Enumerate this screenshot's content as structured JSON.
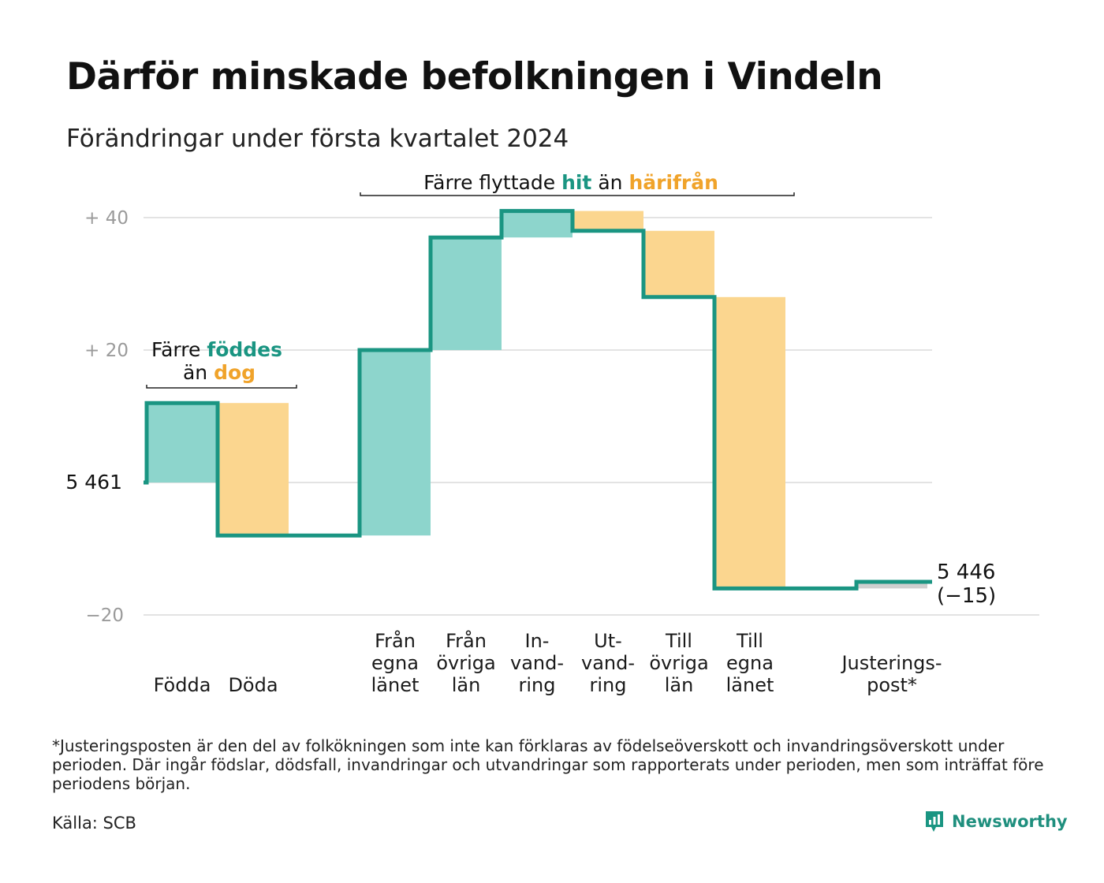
{
  "title": "Därför minskade befolkningen i Vindeln",
  "subtitle": "Förändringar under första kvartalet 2024",
  "colors": {
    "increase": "#8dd5cc",
    "decrease": "#fbd68f",
    "adjustment": "#cfcfcf",
    "line": "#1a9582",
    "accent_teal": "#1a9582",
    "accent_orange": "#f0a32a",
    "grid": "#e3e3e3"
  },
  "chart_data": {
    "type": "waterfall",
    "start_value": 5461,
    "start_label": "5  461",
    "end_value": 5446,
    "end_label": "5 446",
    "end_change_label": "(−15)",
    "y_ticks": [
      {
        "value": 40,
        "label": "+  40"
      },
      {
        "value": 20,
        "label": "+  20"
      },
      {
        "value": -20,
        "label": "−20"
      }
    ],
    "steps": [
      {
        "lines": [
          "Födda"
        ],
        "change": 12,
        "kind": "increase"
      },
      {
        "lines": [
          "Döda"
        ],
        "change": -20,
        "kind": "decrease"
      },
      {
        "lines": [],
        "change": 0,
        "kind": "none"
      },
      {
        "lines": [
          "Från",
          "egna",
          "länet"
        ],
        "change": 28,
        "kind": "increase"
      },
      {
        "lines": [
          "Från",
          "övriga",
          "län"
        ],
        "change": 17,
        "kind": "increase"
      },
      {
        "lines": [
          "In-",
          "vand-",
          "ring"
        ],
        "change": 4,
        "kind": "increase"
      },
      {
        "lines": [
          "Ut-",
          "vand-",
          "ring"
        ],
        "change": -3,
        "kind": "decrease"
      },
      {
        "lines": [
          "Till",
          "övriga",
          "län"
        ],
        "change": -10,
        "kind": "decrease"
      },
      {
        "lines": [
          "Till",
          "egna",
          "länet"
        ],
        "change": -44,
        "kind": "decrease"
      },
      {
        "lines": [],
        "change": 0,
        "kind": "none"
      },
      {
        "lines": [
          "Justerings-",
          "post*"
        ],
        "change": 1,
        "kind": "adjustment"
      }
    ],
    "annotations": {
      "births": {
        "line1_pre": "Färre ",
        "line1_hl": "föddes",
        "line2_pre": "än ",
        "line2_hl": "dog"
      },
      "moves": {
        "pre": "Färre flyttade ",
        "hl1": "hit",
        "mid": " än ",
        "hl2": "härifrån"
      }
    }
  },
  "footnote": "*Justeringsposten är den del av folkökningen som inte kan förklaras av födelseöverskott och invandringsöverskott under perioden. Där ingår födslar, dödsfall, invandringar och utvandringar som rapporterats under perioden, men som inträffat före periodens början.",
  "source": "Källa: SCB",
  "brand": {
    "name": "Newsworthy",
    "icon": "newsworthy-logo-icon"
  }
}
